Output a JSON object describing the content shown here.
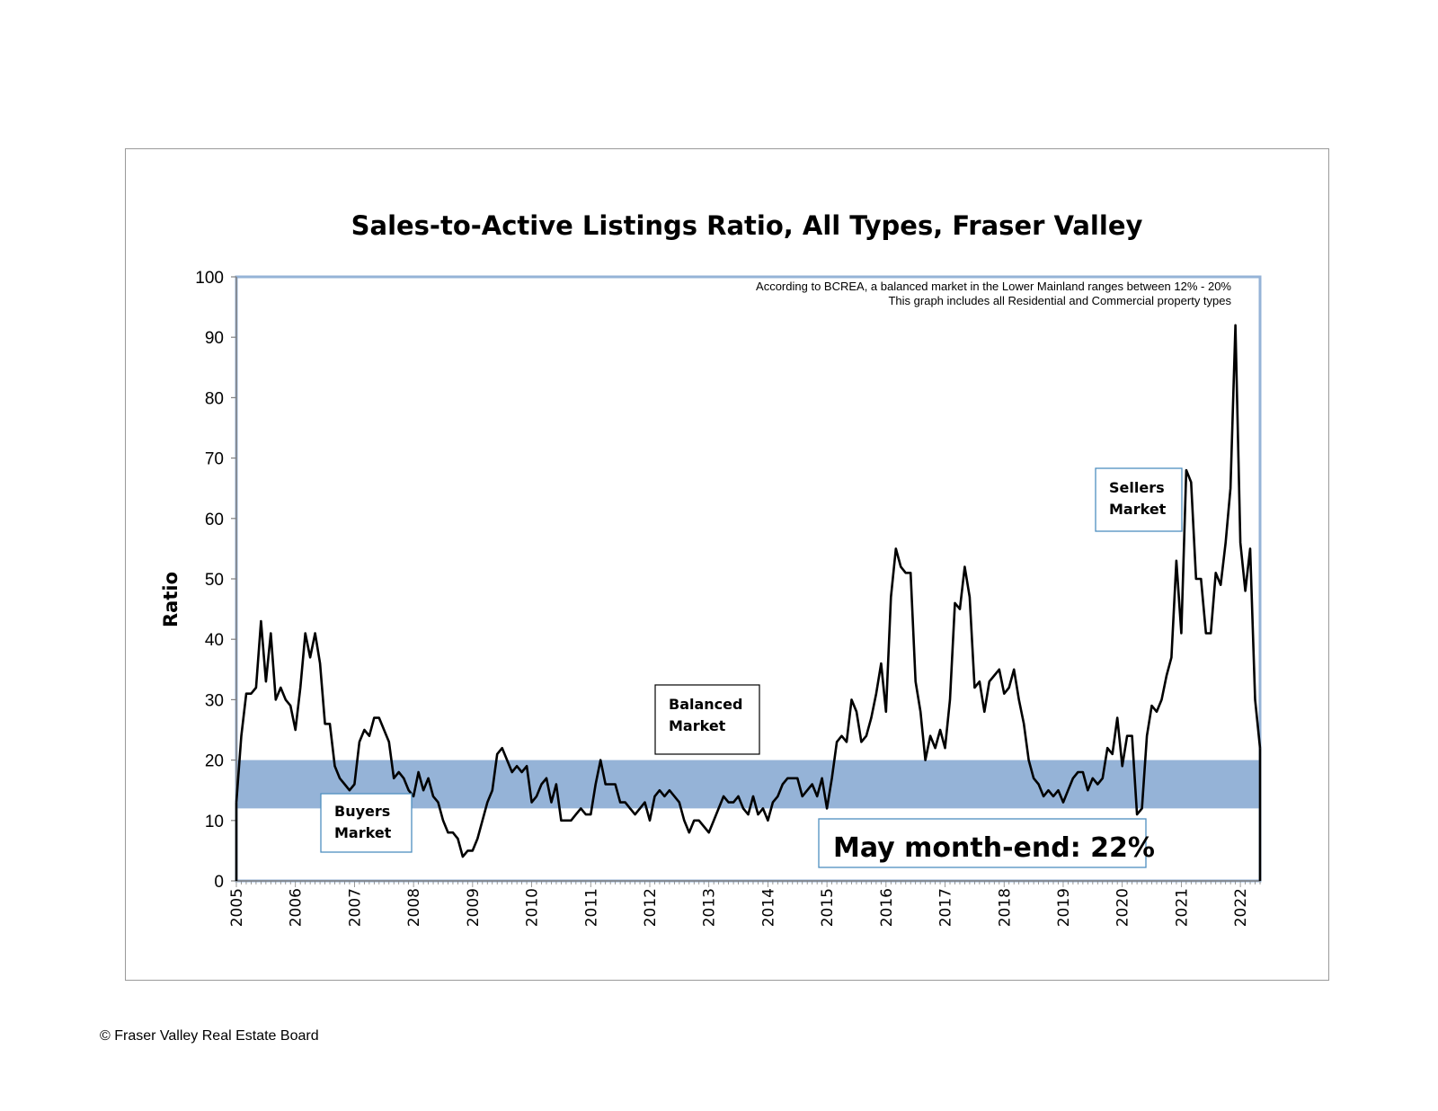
{
  "colors": {
    "balanced_band": "#95b3d7",
    "plot_border": "#95b3d7",
    "series_line": "#000000",
    "annotation_box_border": "#4f8fbf"
  },
  "footer": {
    "copyright": "© Fraser Valley Real Estate Board"
  },
  "chart_data": {
    "type": "line",
    "title": "Sales-to-Active Listings Ratio, All Types, Fraser Valley",
    "xlabel": "",
    "ylabel": "Ratio",
    "ylim": [
      0,
      100
    ],
    "yticks": [
      0,
      10,
      20,
      30,
      40,
      50,
      60,
      70,
      80,
      90,
      100
    ],
    "xticks": [
      "2005",
      "2006",
      "2007",
      "2008",
      "2009",
      "2010",
      "2011",
      "2012",
      "2013",
      "2014",
      "2015",
      "2016",
      "2017",
      "2018",
      "2019",
      "2020",
      "2021",
      "2022"
    ],
    "x_start": "2005-01",
    "x_end": "2022-05",
    "grid": false,
    "balanced_band": [
      12,
      20
    ],
    "notes": [
      "According to BCREA, a balanced market in the Lower Mainland ranges between 12% - 20%",
      "This graph includes all Residential and Commercial property types"
    ],
    "annotations": {
      "buyers": [
        "Buyers",
        "Market"
      ],
      "balanced": [
        "Balanced",
        "Market"
      ],
      "sellers": [
        "Sellers",
        "Market"
      ],
      "month_end": "May month-end: 22%"
    },
    "series": [
      {
        "values": [
          13,
          24,
          31,
          31,
          32,
          43,
          33,
          41,
          30,
          32,
          30,
          29,
          25,
          32,
          41,
          37,
          41,
          36,
          26,
          26,
          19,
          17,
          16,
          15,
          16,
          23,
          25,
          24,
          27,
          27,
          25,
          23,
          17,
          18,
          17,
          15,
          14,
          18,
          15,
          17,
          14,
          13,
          10,
          8,
          8,
          7,
          4,
          5,
          5,
          7,
          10,
          13,
          15,
          21,
          22,
          20,
          18,
          19,
          18,
          19,
          13,
          14,
          16,
          17,
          13,
          16,
          10,
          10,
          10,
          11,
          12,
          11,
          11,
          16,
          20,
          16,
          16,
          16,
          13,
          13,
          12,
          11,
          12,
          13,
          10,
          14,
          15,
          14,
          15,
          14,
          13,
          10,
          8,
          10,
          10,
          9,
          8,
          10,
          12,
          14,
          13,
          13,
          14,
          12,
          11,
          14,
          11,
          12,
          10,
          13,
          14,
          16,
          17,
          17,
          17,
          14,
          15,
          16,
          14,
          17,
          12,
          17,
          23,
          24,
          23,
          30,
          28,
          23,
          24,
          27,
          31,
          36,
          28,
          47,
          55,
          52,
          51,
          51,
          33,
          28,
          20,
          24,
          22,
          25,
          22,
          30,
          46,
          45,
          52,
          47,
          32,
          33,
          28,
          33,
          34,
          35,
          31,
          32,
          35,
          30,
          26,
          20,
          17,
          16,
          14,
          15,
          14,
          15,
          13,
          15,
          17,
          18,
          18,
          15,
          17,
          16,
          17,
          22,
          21,
          27,
          19,
          24,
          24,
          11,
          12,
          24,
          29,
          28,
          30,
          34,
          37,
          53,
          41,
          68,
          66,
          50,
          50,
          41,
          41,
          51,
          49,
          56,
          65,
          92,
          56,
          48,
          55,
          30,
          22
        ]
      }
    ]
  }
}
